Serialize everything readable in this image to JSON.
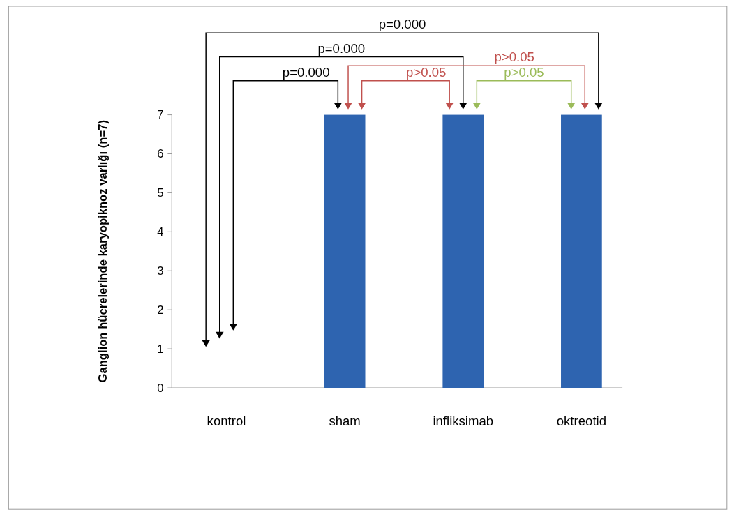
{
  "chart_data": {
    "type": "bar",
    "categories": [
      "kontrol",
      "sham",
      "infliksimab",
      "oktreotid"
    ],
    "values": [
      0,
      7,
      7,
      7
    ],
    "color": "#2e64b0",
    "ylabel": "Ganglion hücrelerinde karyopiknoz varlığı (n=7)",
    "ylim": [
      0,
      7
    ],
    "yticks": [
      0,
      1,
      2,
      3,
      4,
      5,
      6,
      7
    ],
    "annotations": [
      "p=0.000",
      "p=0.000",
      "p=0.000",
      "p>0.05",
      "p>0.05",
      "p>0.05"
    ]
  }
}
